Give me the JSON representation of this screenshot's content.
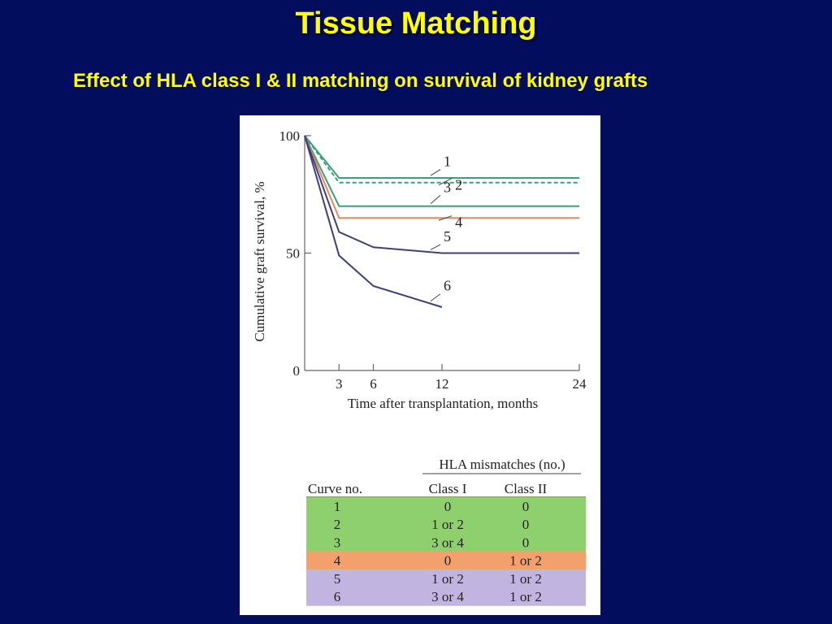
{
  "slide": {
    "title": "Tissue Matching",
    "subtitle": "Effect of HLA class I & II matching on survival of kidney grafts"
  },
  "chart_data": {
    "type": "line",
    "ylabel": "Cumulative graft survival, %",
    "xlabel": "Time after transplantation, months",
    "xlim": [
      0,
      24
    ],
    "ylim": [
      0,
      100
    ],
    "x_ticks": [
      3,
      6,
      12,
      24
    ],
    "y_ticks": [
      0,
      50,
      100
    ],
    "series": [
      {
        "name": "1",
        "color": "#3aa27a",
        "dashed": false,
        "points": [
          [
            0,
            100
          ],
          [
            3,
            82
          ],
          [
            24,
            82
          ]
        ]
      },
      {
        "name": "2",
        "color": "#3aa27a",
        "dashed": true,
        "points": [
          [
            0,
            100
          ],
          [
            3,
            80
          ],
          [
            24,
            80
          ]
        ]
      },
      {
        "name": "3",
        "color": "#3aa27a",
        "dashed": false,
        "points": [
          [
            0,
            100
          ],
          [
            3,
            70
          ],
          [
            24,
            70
          ]
        ]
      },
      {
        "name": "4",
        "color": "#e8875a",
        "dashed": false,
        "points": [
          [
            0,
            100
          ],
          [
            3,
            65
          ],
          [
            24,
            65
          ]
        ]
      },
      {
        "name": "5",
        "color": "#3f3f7a",
        "dashed": false,
        "points": [
          [
            0,
            100
          ],
          [
            3,
            59
          ],
          [
            6,
            52.5
          ],
          [
            12,
            50
          ],
          [
            24,
            50
          ]
        ]
      },
      {
        "name": "6",
        "color": "#3f3f7a",
        "dashed": false,
        "points": [
          [
            0,
            100
          ],
          [
            3,
            49
          ],
          [
            6,
            36
          ],
          [
            12,
            27
          ]
        ]
      }
    ],
    "curve_labels": [
      {
        "label": "1",
        "x": 12,
        "y": 87
      },
      {
        "label": "2",
        "x": 13,
        "y": 77
      },
      {
        "label": "3",
        "x": 12,
        "y": 76
      },
      {
        "label": "4",
        "x": 13,
        "y": 61
      },
      {
        "label": "5",
        "x": 12,
        "y": 55
      },
      {
        "label": "6",
        "x": 12,
        "y": 34
      }
    ]
  },
  "table": {
    "group_header": "HLA mismatches (no.)",
    "columns": [
      "Curve no.",
      "Class I",
      "Class II"
    ],
    "rows": [
      {
        "cells": [
          "1",
          "0",
          "0"
        ],
        "color": "#8fd06e"
      },
      {
        "cells": [
          "2",
          "1 or 2",
          "0"
        ],
        "color": "#8fd06e"
      },
      {
        "cells": [
          "3",
          "3 or 4",
          "0"
        ],
        "color": "#8fd06e"
      },
      {
        "cells": [
          "4",
          "0",
          "1 or 2"
        ],
        "color": "#f4a06c"
      },
      {
        "cells": [
          "5",
          "1 or 2",
          "1 or 2"
        ],
        "color": "#c2b4e0"
      },
      {
        "cells": [
          "6",
          "3 or 4",
          "1 or 2"
        ],
        "color": "#c2b4e0"
      }
    ]
  }
}
